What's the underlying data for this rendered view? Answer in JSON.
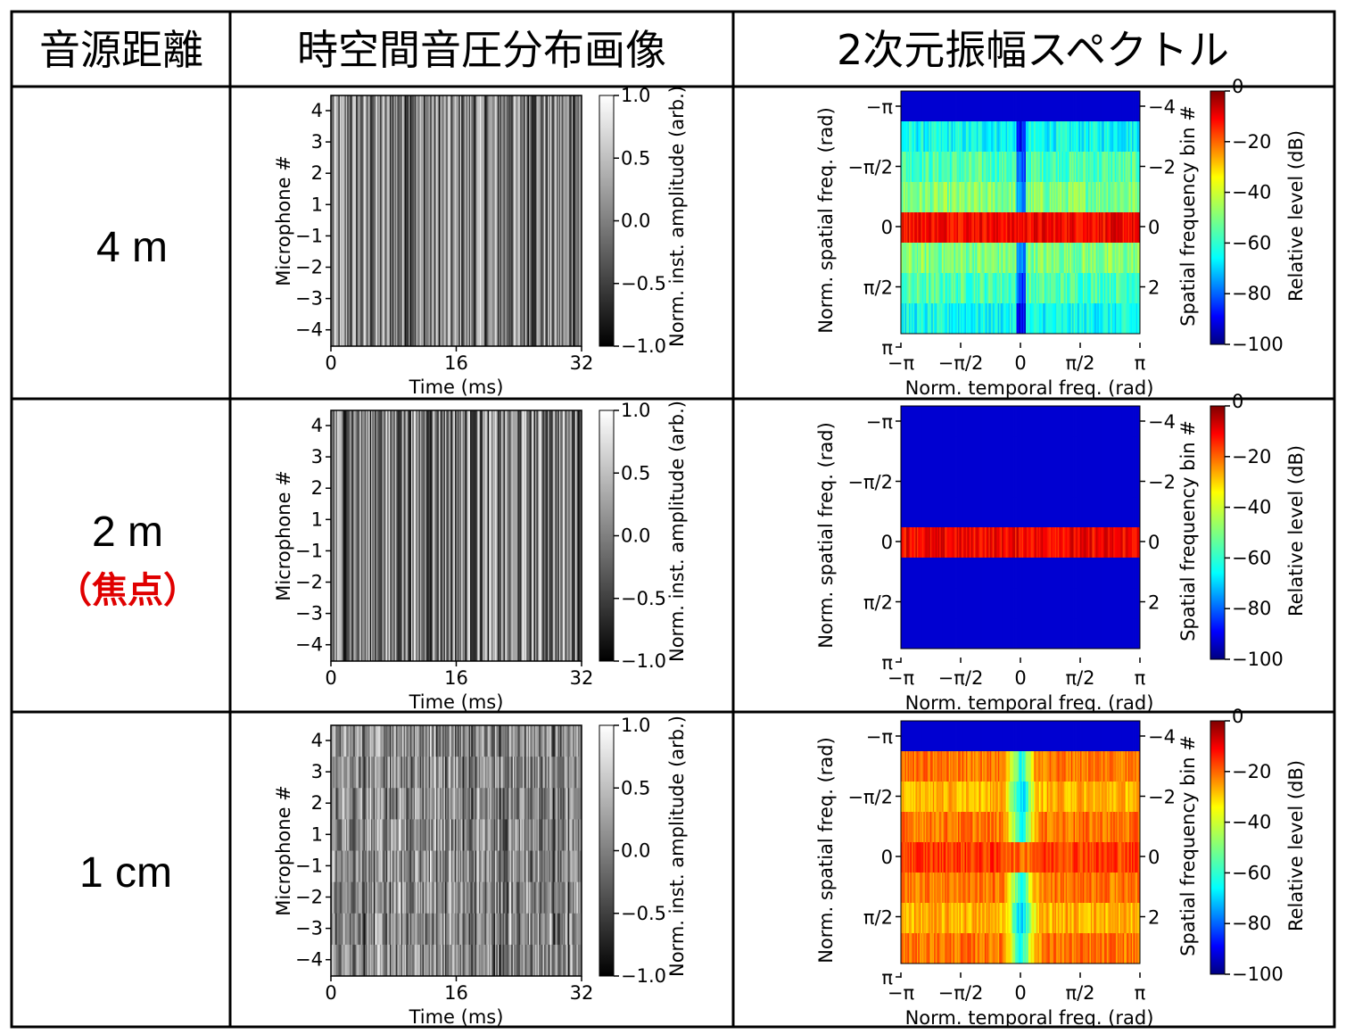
{
  "table": {
    "headers": [
      "音源距離",
      "時空間音圧分布画像",
      "2次元振幅スペクトル"
    ],
    "rows": [
      {
        "distance": "4 m",
        "note": "",
        "spectrum": "wide"
      },
      {
        "distance": "2 m",
        "note": "（焦点）",
        "spectrum": "focused"
      },
      {
        "distance": "1 cm",
        "note": "",
        "spectrum": "near"
      }
    ]
  },
  "colors": {
    "focus_note": "#e00000",
    "grid_line": "#000000",
    "colormap_spectrum": "jet",
    "colormap_image": "gray"
  },
  "chart_data": [
    {
      "type": "heatmap",
      "panel": "time-space pressure image",
      "xlabel": "Time (ms)",
      "ylabel": "Microphone #",
      "x_ticks": [
        "0",
        "16",
        "32"
      ],
      "y_ticks": [
        "4",
        "3",
        "2",
        "1",
        "−1",
        "−2",
        "−3",
        "−4"
      ],
      "colorbar_label": "Norm. inst. amplitude (arb.)",
      "colorbar_ticks": [
        "1.0",
        "0.5",
        "0.0",
        "−0.5",
        "−1.0"
      ],
      "xlim": [
        0,
        32
      ],
      "clim": [
        -1.0,
        1.0
      ]
    },
    {
      "type": "heatmap",
      "panel": "2D amplitude spectrum",
      "xlabel": "Norm. temporal freq. (rad)",
      "ylabel": "Norm. spatial freq. (rad)",
      "ylabel_right": "Spatial frequency bin #",
      "x_ticks": [
        "−π",
        "−π/2",
        "0",
        "π/2",
        "π"
      ],
      "y_ticks": [
        "−π",
        "−π/2",
        "0",
        "π/2",
        "π"
      ],
      "y_ticks_right": [
        "−4",
        "−2",
        "0",
        "2"
      ],
      "colorbar_label": "Relative level (dB)",
      "colorbar_ticks": [
        "0",
        "−20",
        "−40",
        "−60",
        "−80",
        "−100"
      ],
      "clim": [
        -100,
        0
      ]
    }
  ]
}
